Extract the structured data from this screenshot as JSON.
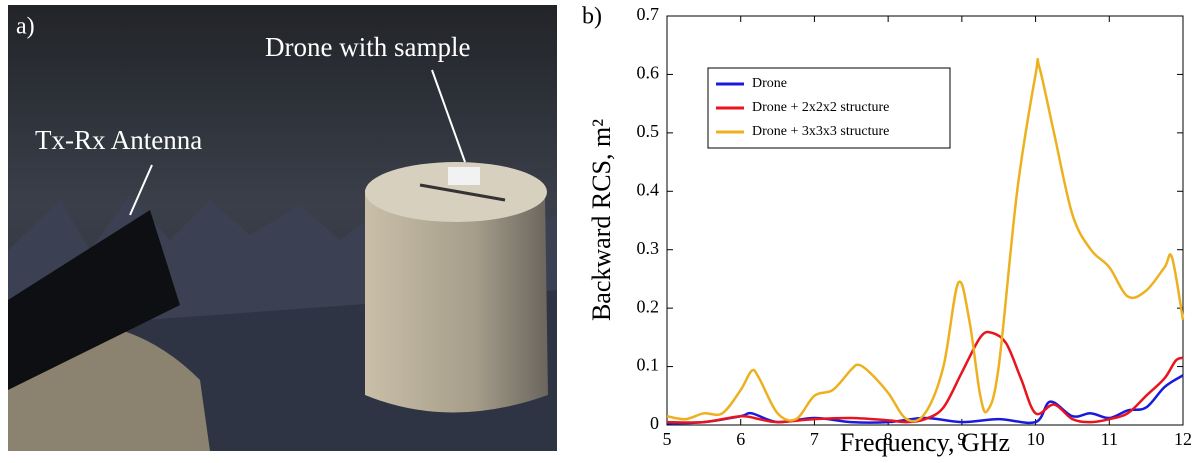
{
  "photo": {
    "panel_label": "a)",
    "annotations": [
      "Tx-Rx Antenna",
      "Drone with sample"
    ]
  },
  "chart_data": {
    "type": "line",
    "panel_label": "b)",
    "xlabel": "Frequency, GHz",
    "ylabel": "Backward RCS, m²",
    "xlim": [
      5,
      12
    ],
    "xticks": [
      5,
      6,
      7,
      8,
      9,
      10,
      11,
      12
    ],
    "ylim": [
      0,
      0.7
    ],
    "yticks": [
      0,
      0.1,
      0.2,
      0.3,
      0.4,
      0.5,
      0.6,
      0.7
    ],
    "legend": "upper left",
    "grid": false,
    "series": [
      {
        "name": "Drone",
        "color": "#1a1adc",
        "x": [
          5,
          5.5,
          6,
          6.15,
          6.5,
          7,
          7.5,
          8,
          8.5,
          9,
          9.5,
          10,
          10.2,
          10.5,
          10.75,
          11,
          11.25,
          11.5,
          11.75,
          12
        ],
        "values": [
          0.003,
          0.005,
          0.015,
          0.02,
          0.005,
          0.012,
          0.005,
          0.005,
          0.012,
          0.005,
          0.01,
          0.005,
          0.04,
          0.015,
          0.02,
          0.012,
          0.025,
          0.03,
          0.065,
          0.085
        ]
      },
      {
        "name": "Drone + 2x2x2 structure",
        "color": "#e8141e",
        "x": [
          5,
          5.5,
          6,
          6.25,
          6.5,
          7,
          7.5,
          8,
          8.25,
          8.5,
          8.75,
          9,
          9.25,
          9.4,
          9.6,
          9.8,
          10,
          10.25,
          10.5,
          10.75,
          11,
          11.25,
          11.5,
          11.75,
          11.9,
          12
        ],
        "values": [
          0.005,
          0.005,
          0.015,
          0.01,
          0.005,
          0.01,
          0.012,
          0.008,
          0.005,
          0.01,
          0.03,
          0.09,
          0.15,
          0.158,
          0.14,
          0.08,
          0.02,
          0.035,
          0.01,
          0.005,
          0.01,
          0.02,
          0.05,
          0.08,
          0.11,
          0.115
        ]
      },
      {
        "name": "Drone + 3x3x3 structure",
        "color": "#edb120",
        "x": [
          5,
          5.25,
          5.5,
          5.75,
          6,
          6.15,
          6.25,
          6.5,
          6.75,
          7,
          7.25,
          7.5,
          7.6,
          7.75,
          8,
          8.25,
          8.5,
          8.75,
          8.95,
          9.1,
          9.25,
          9.35,
          9.5,
          9.75,
          10,
          10.05,
          10.25,
          10.5,
          10.75,
          11,
          11.25,
          11.5,
          11.75,
          11.85,
          12
        ],
        "values": [
          0.015,
          0.01,
          0.02,
          0.02,
          0.06,
          0.093,
          0.08,
          0.02,
          0.01,
          0.05,
          0.06,
          0.095,
          0.103,
          0.09,
          0.055,
          0.01,
          0.02,
          0.1,
          0.243,
          0.18,
          0.05,
          0.025,
          0.1,
          0.4,
          0.6,
          0.613,
          0.5,
          0.36,
          0.3,
          0.27,
          0.22,
          0.23,
          0.27,
          0.287,
          0.18
        ]
      }
    ]
  }
}
